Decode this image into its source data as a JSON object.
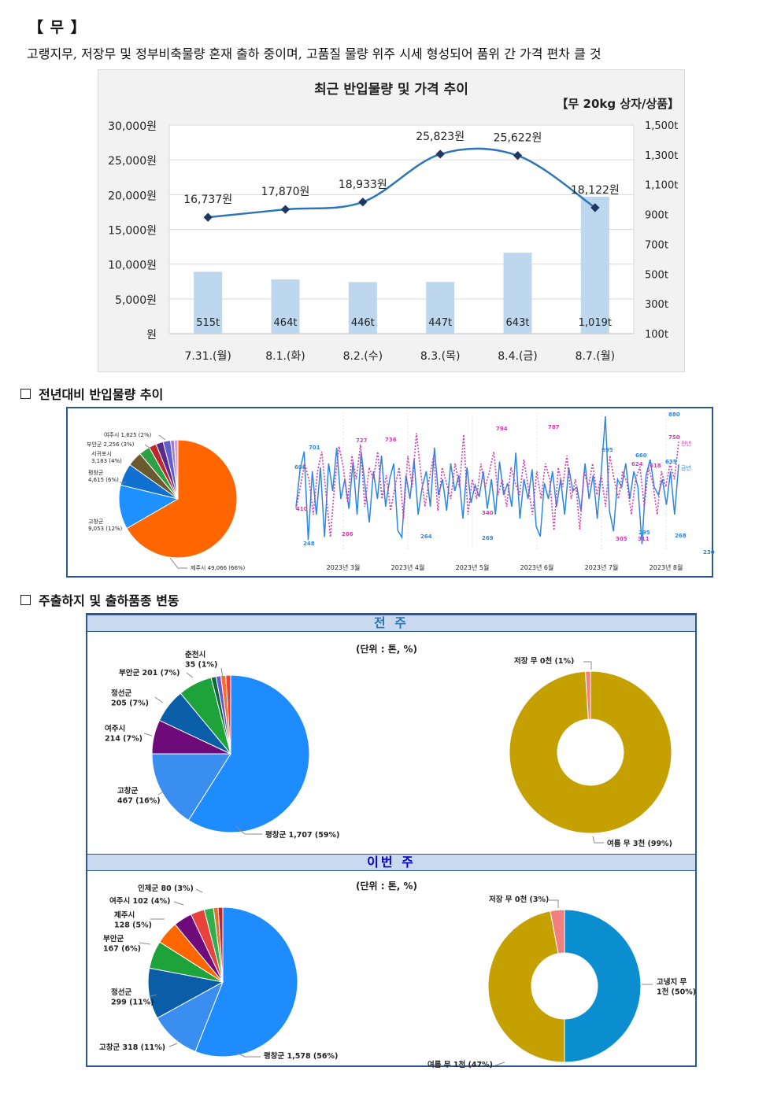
{
  "heading": "【 무 】",
  "summary": "고랭지무, 저장무 및 정부비축물량 혼재 출하 중이며, 고품질 물량 위주 시세 형성되어 품위 간 가격 편차 클 것",
  "chart_data": [
    {
      "type": "bar+line",
      "title": "최근 반입물량 및 가격 추이",
      "subtitle": "【무 20kg 상자/상품】",
      "categories": [
        "7.31.(월)",
        "8.1.(화)",
        "8.2.(수)",
        "8.3.(목)",
        "8.4.(금)",
        "8.7.(월)"
      ],
      "series": [
        {
          "kind": "bar",
          "axis": "right",
          "values": [
            515,
            464,
            446,
            447,
            643,
            1019
          ],
          "labels": [
            "515t",
            "464t",
            "446t",
            "447t",
            "643t",
            "1,019t"
          ],
          "color": "#bdd7ee"
        },
        {
          "kind": "line",
          "axis": "left",
          "values": [
            16737,
            17870,
            18933,
            25823,
            25622,
            18122
          ],
          "labels": [
            "16,737원",
            "17,870원",
            "18,933원",
            "25,823원",
            "25,622원",
            "18,122원"
          ],
          "color": "#2e75b6"
        }
      ],
      "left_axis": {
        "ticks": [
          "원",
          "5,000원",
          "10,000원",
          "15,000원",
          "20,000원",
          "25,000원",
          "30,000원"
        ],
        "ylim": [
          0,
          30000
        ]
      },
      "right_axis": {
        "ticks": [
          "100t",
          "300t",
          "500t",
          "700t",
          "900t",
          "1,100t",
          "1,300t",
          "1,500t"
        ],
        "ylim": [
          100,
          1500
        ]
      },
      "grid": true
    },
    {
      "type": "pie",
      "slices": [
        {
          "label": "제주시 49,066 (66%)",
          "value": 66,
          "color": "#ff6600"
        },
        {
          "label": "고창군 9,053 (12%)",
          "value": 12,
          "color": "#1e90ff"
        },
        {
          "label": "평창군 4,615 (6%)",
          "value": 6,
          "color": "#0f70d0"
        },
        {
          "label": "서귀포시 3,183 (4%)",
          "value": 4,
          "color": "#6b5a2e"
        },
        {
          "label": "부안군 2,256 (3%)",
          "value": 3,
          "color": "#2ea043"
        },
        {
          "label": "여주시 1,625 (2%)",
          "value": 2,
          "color": "#c0272d"
        },
        {
          "label": "",
          "value": 2,
          "color": "#5b2a86"
        },
        {
          "label": "",
          "value": 2,
          "color": "#6060cc"
        },
        {
          "label": "",
          "value": 1,
          "color": "#9a7fd0"
        },
        {
          "label": "",
          "value": 1,
          "color": "#d9a0d0"
        }
      ]
    },
    {
      "type": "line",
      "x_ticks": [
        "2023년 3월",
        "2023년 4월",
        "2023년 5월",
        "2023년 6월",
        "2023년 7월",
        "2023년 8월"
      ],
      "series": [
        {
          "name": "금년",
          "color": "#2e86de",
          "dash": false,
          "values": [
            420,
            608,
            701,
            250,
            600,
            380,
            620,
            266,
            640,
            500,
            720,
            460,
            560,
            410,
            650,
            380,
            700,
            520,
            340,
            600,
            460,
            680,
            420,
            560,
            640,
            300,
            264,
            580,
            460,
            660,
            380,
            520,
            600,
            420,
            720,
            480,
            560,
            400,
            640,
            500,
            580,
            360,
            620,
            440,
            530,
            470,
            600,
            410,
            560,
            380,
            650,
            480,
            540,
            420,
            695,
            360,
            560,
            460,
            610,
            320,
            269,
            540,
            460,
            600,
            420,
            560,
            380,
            620,
            500,
            520,
            400,
            640,
            460,
            580,
            360,
            600,
            880,
            400,
            295,
            560,
            520,
            640,
            460,
            600,
            520,
            230,
            580,
            660,
            520,
            480,
            560,
            430,
            600,
            380,
            635
          ]
        },
        {
          "name": "전년",
          "color": "#d63bb0",
          "dash": true,
          "values": [
            410,
            520,
            640,
            560,
            380,
            600,
            700,
            480,
            266,
            540,
            727,
            620,
            440,
            680,
            560,
            736,
            420,
            620,
            560,
            700,
            460,
            580,
            400,
            520,
            620,
            360,
            680,
            520,
            794,
            600,
            420,
            560,
            680,
            400,
            620,
            540,
            460,
            640,
            520,
            787,
            380,
            560,
            460,
            640,
            520,
            600,
            700,
            480,
            560,
            420,
            620,
            540,
            480,
            660,
            520,
            380,
            600,
            460,
            640,
            560,
            300,
            620,
            520,
            680,
            460,
            560,
            305,
            600,
            520,
            640,
            480,
            580,
            420,
            680,
            560,
            460,
            600,
            540,
            380,
            560,
            624,
            420,
            618,
            540,
            380,
            600,
            520,
            640,
            560,
            750
          ]
        }
      ],
      "annotations": [
        "608",
        "701",
        "727",
        "736",
        "794",
        "787",
        "695",
        "880",
        "660",
        "624",
        "618",
        "750",
        "635",
        "410",
        "248",
        "266",
        "264",
        "269",
        "305",
        "295",
        "230",
        "268",
        "311",
        "340"
      ]
    },
    {
      "type": "pie",
      "panel": "전 주",
      "unit": "(단위 : 톤, %)",
      "slices": [
        {
          "label": "평창군 1,707 (59%)",
          "value": 59,
          "color": "#1e8cff"
        },
        {
          "label": "고창군 467 (16%)",
          "value": 16,
          "color": "#3a8ef0"
        },
        {
          "label": "여주시 214 (7%)",
          "value": 7,
          "color": "#6e0a7a"
        },
        {
          "label": "정선군 205 (7%)",
          "value": 7,
          "color": "#0a5ea8"
        },
        {
          "label": "부안군 201 (7%)",
          "value": 7,
          "color": "#1ea33a"
        },
        {
          "label": "춘천시 35 (1%)",
          "value": 1,
          "color": "#0b6b3a"
        },
        {
          "label": "",
          "value": 1,
          "color": "#6a5acd"
        },
        {
          "label": "",
          "value": 1,
          "color": "#ff6b2a"
        },
        {
          "label": "",
          "value": 1,
          "color": "#e8423c"
        }
      ]
    },
    {
      "type": "donut",
      "panel": "전 주",
      "slices": [
        {
          "label": "여름 무 3천 (99%)",
          "value": 99,
          "color": "#c4a000"
        },
        {
          "label": "저장 무 0천 (1%)",
          "value": 1,
          "color": "#f08080"
        }
      ]
    },
    {
      "type": "pie",
      "panel": "이번 주",
      "unit": "(단위 : 톤, %)",
      "slices": [
        {
          "label": "평창군 1,578 (56%)",
          "value": 56,
          "color": "#1e8cff"
        },
        {
          "label": "고창군 318 (11%)",
          "value": 11,
          "color": "#3a8ef0"
        },
        {
          "label": "정선군 299 (11%)",
          "value": 11,
          "color": "#0a5ea8"
        },
        {
          "label": "부안군 167 (6%)",
          "value": 6,
          "color": "#1ea33a"
        },
        {
          "label": "제주시 128 (5%)",
          "value": 5,
          "color": "#ff6600"
        },
        {
          "label": "여주시 102 (4%)",
          "value": 4,
          "color": "#6e0a7a"
        },
        {
          "label": "인제군 80 (3%)",
          "value": 3,
          "color": "#e8423c"
        },
        {
          "label": "",
          "value": 2,
          "color": "#2fae4a"
        },
        {
          "label": "",
          "value": 1,
          "color": "#d9743c"
        },
        {
          "label": "",
          "value": 1,
          "color": "#c0272d"
        }
      ]
    },
    {
      "type": "donut",
      "panel": "이번 주",
      "slices": [
        {
          "label": "고냉지 무 1천 (50%)",
          "value": 50,
          "color": "#0a8ed0"
        },
        {
          "label": "여름 무 1천 (47%)",
          "value": 47,
          "color": "#c4a000"
        },
        {
          "label": "저장 무 0천 (3%)",
          "value": 3,
          "color": "#f08080"
        }
      ]
    }
  ],
  "sections": {
    "yoy": "전년대비 반입물량 추이",
    "origins": "주출하지 및 출하품종 변동"
  },
  "legend": {
    "prev": "전년",
    "curr": "금년"
  },
  "panels": {
    "prev": "전 주",
    "curr": "이번 주",
    "unit": "(단위 : 톤, %)"
  }
}
